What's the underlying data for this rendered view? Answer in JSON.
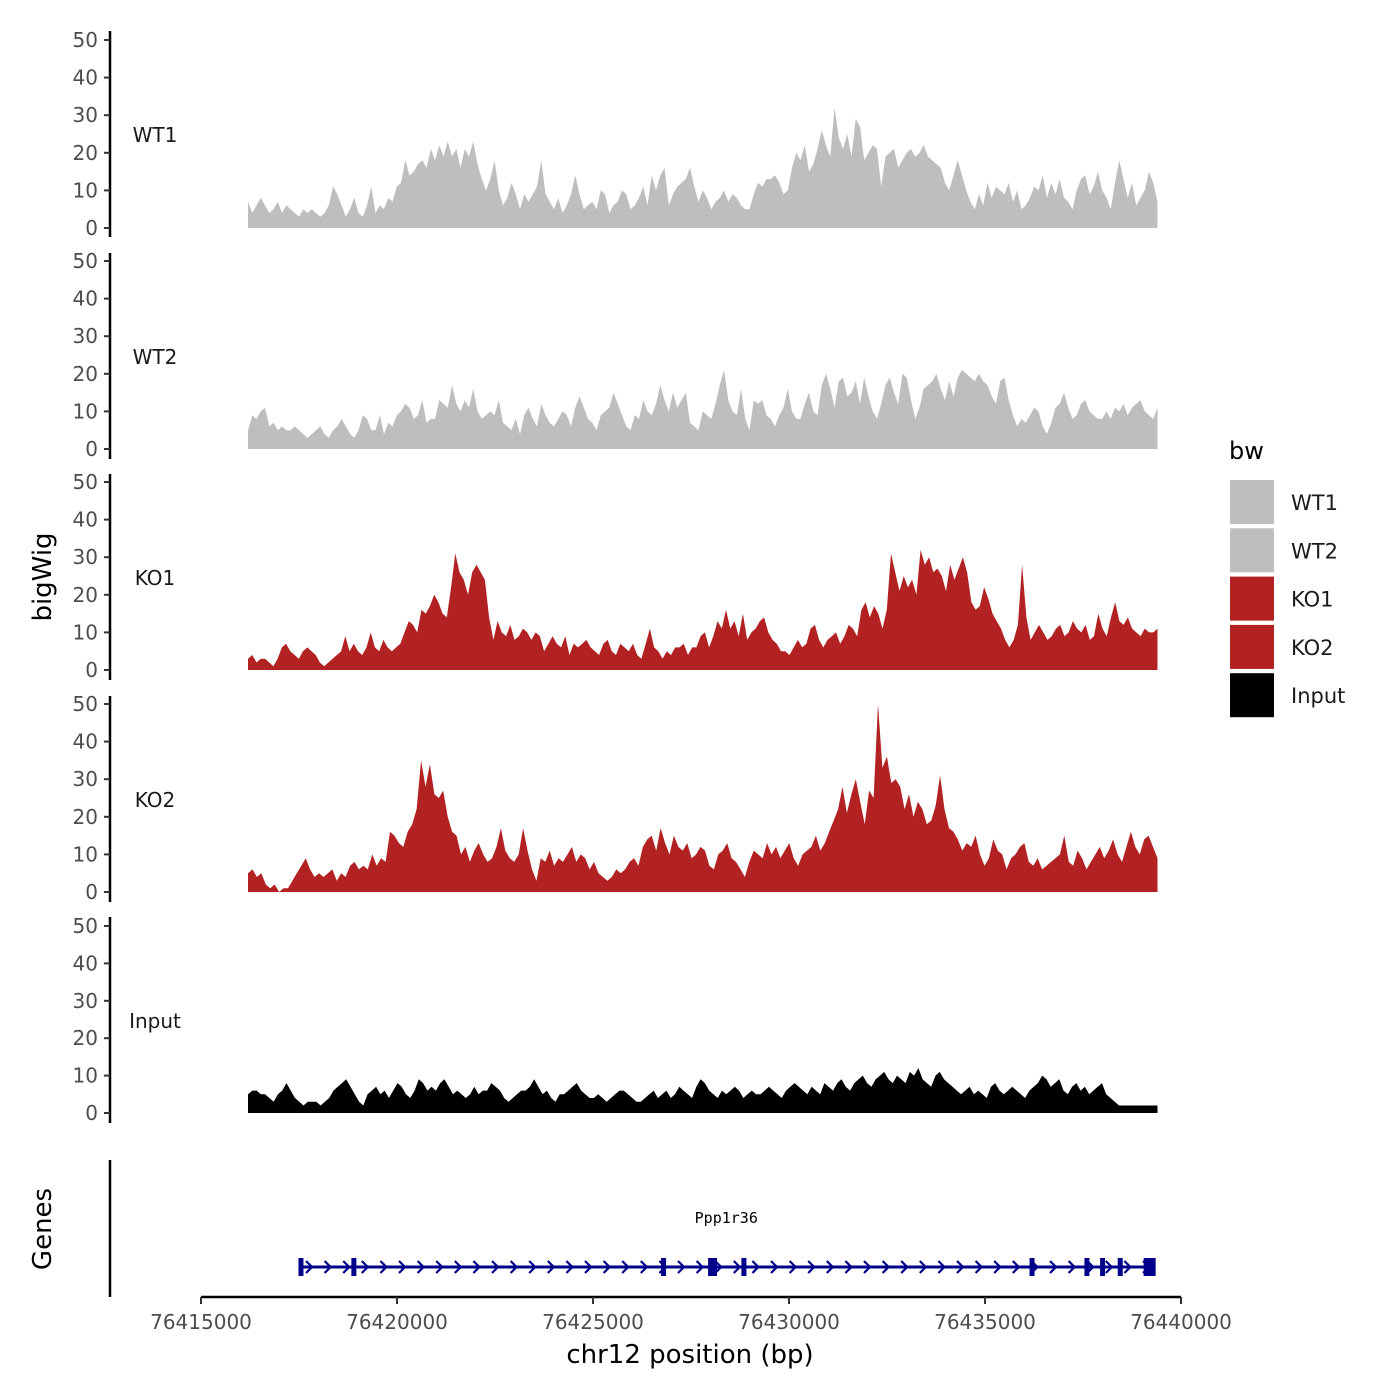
{
  "chart_data": {
    "type": "area",
    "title": "",
    "ylabel": "bigWig",
    "xlabel": "chr12 position (bp)",
    "genes_label": "Genes",
    "xlim": [
      76415000,
      76440000
    ],
    "ylim": [
      0,
      50
    ],
    "x_ticks": [
      76415000,
      76420000,
      76425000,
      76430000,
      76435000,
      76440000
    ],
    "x_tick_labels": [
      "76415000",
      "76420000",
      "76425000",
      "76430000",
      "76435000",
      "76440000"
    ],
    "y_ticks": [
      0,
      10,
      20,
      30,
      40,
      50
    ],
    "y_tick_labels": [
      "0",
      "10",
      "20",
      "30",
      "40",
      "50"
    ],
    "data_range": [
      76416200,
      76439400
    ],
    "legend": {
      "title": "bw",
      "position": "right",
      "entries": [
        {
          "label": "WT1",
          "color": "#bebebe"
        },
        {
          "label": "WT2",
          "color": "#bebebe"
        },
        {
          "label": "KO1",
          "color": "#b22222"
        },
        {
          "label": "KO2",
          "color": "#b22222"
        },
        {
          "label": "Input",
          "color": "#000000"
        }
      ]
    },
    "series": [
      {
        "name": "WT1",
        "color": "#bebebe",
        "values": [
          7,
          4,
          6,
          8,
          6,
          4,
          5,
          7,
          4,
          6,
          5,
          4,
          3,
          5,
          4,
          5,
          4,
          3,
          4,
          6,
          11,
          9,
          6,
          3,
          5,
          8,
          4,
          3,
          6,
          11,
          4,
          6,
          5,
          8,
          7,
          11,
          12,
          18,
          14,
          15,
          17,
          18,
          16,
          21,
          18,
          22,
          19,
          23,
          19,
          21,
          16,
          21,
          19,
          23,
          17,
          13,
          10,
          13,
          18,
          10,
          6,
          8,
          12,
          9,
          5,
          9,
          7,
          9,
          11,
          18,
          9,
          7,
          5,
          8,
          4,
          6,
          9,
          14,
          9,
          5,
          6,
          7,
          5,
          10,
          9,
          4,
          6,
          7,
          10,
          9,
          5,
          6,
          8,
          11,
          6,
          14,
          10,
          14,
          16,
          6,
          9,
          11,
          12,
          13,
          16,
          11,
          7,
          10,
          8,
          5,
          7,
          8,
          10,
          7,
          9,
          8,
          6,
          5,
          5,
          9,
          12,
          11,
          13,
          13,
          14,
          12,
          9,
          10,
          16,
          20,
          18,
          22,
          15,
          17,
          21,
          26,
          22,
          19,
          32,
          24,
          21,
          25,
          19,
          29,
          27,
          18,
          20,
          22,
          21,
          11,
          19,
          20,
          21,
          16,
          18,
          20,
          21,
          19,
          20,
          22,
          19,
          18,
          17,
          16,
          12,
          10,
          14,
          18,
          14,
          10,
          7,
          5,
          9,
          6,
          12,
          8,
          11,
          10,
          9,
          12,
          7,
          10,
          5,
          6,
          8,
          11,
          10,
          14,
          8,
          12,
          9,
          13,
          8,
          7,
          5,
          10,
          13,
          14,
          9,
          11,
          15,
          10,
          8,
          5,
          12,
          18,
          13,
          8,
          12,
          6,
          8,
          10,
          15,
          12,
          7
        ]
      },
      {
        "name": "WT2",
        "color": "#bebebe",
        "values": [
          5,
          9,
          8,
          10,
          11,
          6,
          7,
          5,
          6,
          5,
          5,
          6,
          5,
          4,
          3,
          4,
          5,
          6,
          4,
          3,
          5,
          6,
          8,
          6,
          4,
          3,
          5,
          9,
          8,
          5,
          5,
          9,
          4,
          7,
          6,
          9,
          10,
          12,
          11,
          8,
          9,
          13,
          7,
          8,
          8,
          13,
          12,
          11,
          17,
          12,
          10,
          13,
          11,
          16,
          10,
          8,
          9,
          10,
          9,
          13,
          7,
          6,
          5,
          8,
          4,
          9,
          11,
          8,
          6,
          12,
          9,
          7,
          6,
          8,
          10,
          9,
          6,
          11,
          14,
          11,
          8,
          7,
          5,
          9,
          10,
          11,
          15,
          12,
          9,
          6,
          5,
          9,
          8,
          13,
          10,
          9,
          12,
          17,
          13,
          10,
          15,
          11,
          13,
          15,
          7,
          6,
          5,
          10,
          9,
          8,
          12,
          17,
          21,
          13,
          10,
          9,
          16,
          8,
          5,
          13,
          12,
          13,
          9,
          8,
          6,
          9,
          11,
          16,
          10,
          8,
          8,
          12,
          15,
          10,
          9,
          17,
          20,
          16,
          11,
          18,
          19,
          14,
          15,
          18,
          12,
          19,
          14,
          10,
          8,
          12,
          17,
          19,
          15,
          12,
          20,
          19,
          13,
          8,
          11,
          16,
          17,
          18,
          20,
          16,
          13,
          18,
          14,
          19,
          21,
          20,
          19,
          18,
          20,
          18,
          17,
          14,
          12,
          18,
          19,
          13,
          9,
          6,
          8,
          7,
          9,
          11,
          10,
          6,
          4,
          7,
          11,
          12,
          15,
          11,
          8,
          9,
          12,
          13,
          10,
          9,
          8,
          8,
          10,
          8,
          11,
          10,
          12,
          9,
          11,
          12,
          13,
          10,
          9,
          8,
          11
        ]
      },
      {
        "name": "KO1",
        "color": "#b22222",
        "values": [
          3,
          4,
          2,
          3,
          3,
          2,
          1,
          3,
          6,
          7,
          5,
          4,
          3,
          5,
          6,
          5,
          4,
          2,
          1,
          2,
          3,
          4,
          5,
          9,
          5,
          7,
          5,
          4,
          6,
          10,
          6,
          5,
          8,
          6,
          5,
          6,
          7,
          10,
          13,
          12,
          10,
          16,
          15,
          17,
          20,
          18,
          15,
          14,
          22,
          31,
          26,
          24,
          20,
          26,
          28,
          26,
          24,
          14,
          8,
          13,
          10,
          9,
          12,
          8,
          9,
          11,
          10,
          8,
          10,
          9,
          5,
          7,
          9,
          7,
          6,
          9,
          4,
          7,
          6,
          7,
          8,
          6,
          5,
          4,
          7,
          8,
          5,
          4,
          7,
          6,
          5,
          7,
          4,
          3,
          7,
          11,
          6,
          5,
          3,
          5,
          4,
          6,
          6,
          7,
          4,
          6,
          6,
          9,
          10,
          6,
          9,
          13,
          11,
          16,
          11,
          13,
          9,
          15,
          8,
          10,
          11,
          13,
          14,
          10,
          8,
          7,
          5,
          5,
          4,
          6,
          8,
          6,
          7,
          11,
          12,
          8,
          6,
          8,
          9,
          10,
          7,
          9,
          12,
          11,
          9,
          16,
          18,
          14,
          17,
          15,
          11,
          16,
          31,
          26,
          21,
          25,
          22,
          24,
          20,
          32,
          28,
          30,
          26,
          27,
          25,
          21,
          28,
          24,
          27,
          30,
          26,
          18,
          16,
          17,
          22,
          19,
          15,
          13,
          11,
          8,
          6,
          8,
          12,
          28,
          14,
          8,
          10,
          12,
          10,
          8,
          9,
          11,
          12,
          9,
          10,
          13,
          11,
          10,
          12,
          8,
          9,
          15,
          11,
          9,
          14,
          18,
          13,
          12,
          14,
          11,
          10,
          9,
          11,
          10,
          10,
          11
        ]
      },
      {
        "name": "KO2",
        "color": "#b22222",
        "values": [
          5,
          6,
          4,
          5,
          2,
          1,
          2,
          0,
          1,
          1,
          3,
          5,
          7,
          9,
          6,
          4,
          5,
          4,
          5,
          6,
          3,
          5,
          4,
          7,
          8,
          6,
          7,
          6,
          10,
          7,
          9,
          8,
          16,
          15,
          13,
          12,
          16,
          18,
          22,
          35,
          28,
          34,
          26,
          25,
          27,
          20,
          16,
          15,
          10,
          12,
          8,
          11,
          13,
          10,
          8,
          9,
          12,
          17,
          11,
          9,
          8,
          10,
          17,
          11,
          6,
          3,
          9,
          8,
          11,
          7,
          9,
          8,
          10,
          12,
          8,
          10,
          9,
          6,
          8,
          5,
          4,
          3,
          4,
          6,
          5,
          6,
          8,
          9,
          7,
          12,
          14,
          15,
          11,
          17,
          13,
          10,
          15,
          12,
          11,
          13,
          9,
          10,
          12,
          11,
          7,
          6,
          10,
          11,
          13,
          9,
          8,
          6,
          4,
          8,
          11,
          10,
          9,
          13,
          10,
          12,
          9,
          11,
          13,
          9,
          7,
          10,
          11,
          12,
          15,
          11,
          13,
          16,
          19,
          22,
          28,
          21,
          26,
          30,
          24,
          18,
          27,
          25,
          50,
          33,
          36,
          29,
          30,
          28,
          22,
          26,
          20,
          24,
          22,
          18,
          19,
          23,
          31,
          22,
          17,
          16,
          14,
          11,
          13,
          12,
          15,
          10,
          7,
          9,
          14,
          11,
          10,
          6,
          9,
          10,
          12,
          13,
          8,
          7,
          9,
          6,
          7,
          8,
          9,
          10,
          15,
          8,
          7,
          11,
          9,
          6,
          8,
          10,
          12,
          9,
          11,
          14,
          10,
          8,
          12,
          16,
          12,
          10,
          14,
          15,
          12,
          9
        ]
      },
      {
        "name": "Input",
        "color": "#000000",
        "values": [
          5,
          6,
          6,
          5,
          5,
          4,
          3,
          5,
          6,
          8,
          6,
          4,
          3,
          2,
          3,
          3,
          3,
          2,
          3,
          4,
          6,
          7,
          8,
          9,
          7,
          5,
          3,
          2,
          5,
          6,
          7,
          5,
          6,
          4,
          6,
          8,
          7,
          5,
          4,
          6,
          9,
          8,
          6,
          7,
          6,
          8,
          9,
          7,
          5,
          6,
          5,
          4,
          5,
          7,
          5,
          6,
          6,
          8,
          7,
          6,
          4,
          3,
          4,
          5,
          6,
          6,
          7,
          9,
          7,
          5,
          6,
          4,
          3,
          5,
          5,
          6,
          7,
          8,
          6,
          5,
          4,
          4,
          5,
          4,
          3,
          4,
          5,
          6,
          6,
          5,
          4,
          3,
          3,
          4,
          5,
          6,
          4,
          5,
          6,
          4,
          5,
          7,
          6,
          5,
          4,
          7,
          9,
          8,
          6,
          5,
          4,
          6,
          5,
          6,
          7,
          6,
          4,
          5,
          6,
          5,
          5,
          6,
          7,
          6,
          5,
          4,
          6,
          7,
          8,
          7,
          6,
          5,
          7,
          6,
          5,
          8,
          7,
          6,
          8,
          9,
          7,
          6,
          8,
          9,
          10,
          8,
          7,
          9,
          10,
          11,
          9,
          8,
          10,
          9,
          8,
          11,
          10,
          12,
          9,
          8,
          7,
          10,
          11,
          9,
          8,
          7,
          6,
          5,
          6,
          7,
          5,
          6,
          5,
          4,
          7,
          8,
          6,
          5,
          6,
          7,
          6,
          5,
          4,
          6,
          7,
          8,
          10,
          9,
          7,
          8,
          9,
          6,
          5,
          7,
          8,
          6,
          7,
          5,
          6,
          7,
          8,
          5,
          4,
          3,
          2,
          2,
          2,
          2,
          2,
          2,
          2,
          2,
          2,
          2
        ]
      }
    ],
    "genes": [
      {
        "name": "Ppp1r36",
        "start": 76417500,
        "end": 76439300,
        "strand": "+",
        "exons": [
          76417550,
          76418900,
          76426800,
          76428000,
          76428100,
          76428850,
          76436200,
          76437600,
          76438000,
          76438450,
          76439200
        ]
      }
    ]
  }
}
